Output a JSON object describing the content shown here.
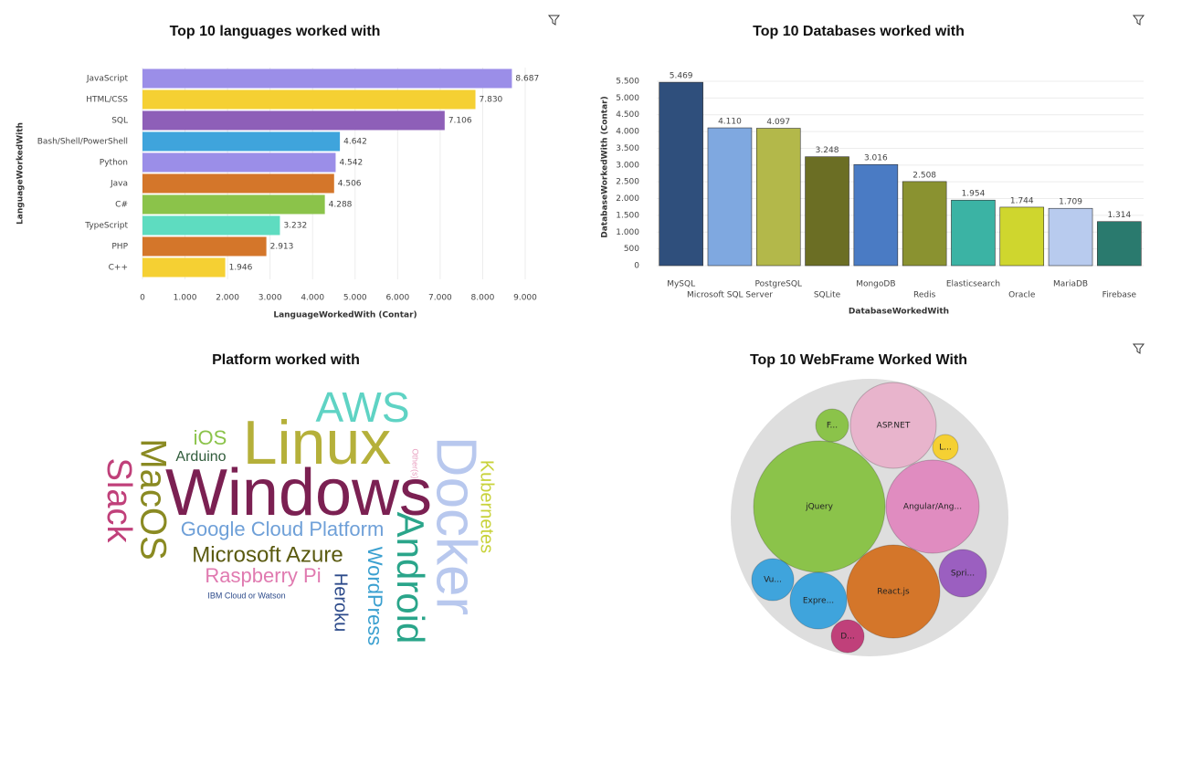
{
  "chart_data": [
    {
      "type": "hbar",
      "title": "Top 10 languages worked with",
      "x_label": "LanguageWorkedWith (Contar)",
      "y_label": "LanguageWorkedWith",
      "categories": [
        "JavaScript",
        "HTML/CSS",
        "SQL",
        "Bash/Shell/PowerShell",
        "Python",
        "Java",
        "C#",
        "TypeScript",
        "PHP",
        "C++"
      ],
      "values": [
        8687,
        7830,
        7106,
        4642,
        4542,
        4506,
        4288,
        3232,
        2913,
        1946
      ],
      "value_labels": [
        "8.687",
        "7.830",
        "7.106",
        "4.642",
        "4.542",
        "4.506",
        "4.288",
        "3.232",
        "2.913",
        "1.946"
      ],
      "colors": [
        "#9b8ee8",
        "#f5d033",
        "#8e5fb8",
        "#3fa4dc",
        "#9b8ee8",
        "#d4762a",
        "#8bc34a",
        "#5edcc0",
        "#d4762a",
        "#f5d033"
      ],
      "xlim": [
        0,
        9000
      ],
      "xticks": [
        0,
        {
          "value": 1000,
          "label": "1.000"
        },
        {
          "value": 2000,
          "label": "2.000"
        },
        {
          "value": 3000,
          "label": "3.000"
        },
        {
          "value": 4000,
          "label": "4.000"
        },
        {
          "value": 5000,
          "label": "5.000"
        },
        {
          "value": 6000,
          "label": "6.000"
        },
        {
          "value": 7000,
          "label": "7.000"
        },
        {
          "value": 8000,
          "label": "8.000"
        },
        {
          "value": 9000,
          "label": "9.000"
        }
      ],
      "grid": true
    },
    {
      "type": "bar",
      "title": "Top 10 Databases worked with",
      "x_label": "DatabaseWorkedWith",
      "y_label": "DatabaseWorkedWith (Contar)",
      "categories": [
        "MySQL",
        "Microsoft SQL Server",
        "PostgreSQL",
        "SQLite",
        "MongoDB",
        "Redis",
        "Elasticsearch",
        "Oracle",
        "MariaDB",
        "Firebase"
      ],
      "values": [
        5469,
        4110,
        4097,
        3248,
        3016,
        2508,
        1954,
        1744,
        1709,
        1314
      ],
      "value_labels": [
        "5.469",
        "4.110",
        "4.097",
        "3.248",
        "3.016",
        "2.508",
        "1.954",
        "1.744",
        "1.709",
        "1.314"
      ],
      "colors": [
        "#2f4f7c",
        "#7fa8e0",
        "#b3b84a",
        "#6b6e24",
        "#4a7bc4",
        "#8a9230",
        "#3bb3a4",
        "#cfd62e",
        "#b8cbee",
        "#2a7a6e"
      ],
      "ylim": [
        0,
        5500
      ],
      "yticks": [
        0,
        500,
        {
          "value": 1000,
          "label": "1.000"
        },
        {
          "value": 1500,
          "label": "1.500"
        },
        {
          "value": 2000,
          "label": "2.000"
        },
        {
          "value": 2500,
          "label": "2.500"
        },
        {
          "value": 3000,
          "label": "3.000"
        },
        {
          "value": 3500,
          "label": "3.500"
        },
        {
          "value": 4000,
          "label": "4.000"
        },
        {
          "value": 4500,
          "label": "4.500"
        },
        {
          "value": 5000,
          "label": "5.000"
        },
        {
          "value": 5500,
          "label": "5.500"
        }
      ],
      "grid": true
    },
    {
      "type": "wordcloud",
      "title": "Platform worked with",
      "categories": [
        "Windows",
        "Linux",
        "AWS",
        "iOS",
        "Arduino",
        "Slack",
        "MacOS",
        "Docker",
        "Kubernetes",
        "Other(s)",
        "Google Cloud Platform",
        "Android",
        "Microsoft Azure",
        "Raspberry Pi",
        "WordPress",
        "Heroku",
        "IBM Cloud or Watson"
      ],
      "values": [
        72,
        68,
        46,
        22,
        16,
        38,
        40,
        62,
        20,
        9,
        22,
        42,
        24,
        22,
        22,
        20,
        9
      ],
      "colors": [
        "#7b2052",
        "#b5b03a",
        "#5fd3c4",
        "#8bc34a",
        "#2f5b3a",
        "#c0407a",
        "#8a8a22",
        "#b8c8ee",
        "#c8d23a",
        "#e8a0c0",
        "#6fa0d8",
        "#2aa58a",
        "#5a5a10",
        "#e07ab0",
        "#3ba0d0",
        "#2c4a8a",
        "#2c4a8a"
      ]
    },
    {
      "type": "pack",
      "title": "Top 10 WebFrame Worked With",
      "categories": [
        "F...",
        "ASP.NET",
        "L...",
        "jQuery",
        "Angular/Ang...",
        "Vu...",
        "Expre...",
        "React.js",
        "Spri...",
        "D..."
      ],
      "values": [
        324,
        2209,
        196,
        5184,
        2601,
        529,
        961,
        2601,
        676,
        324
      ],
      "colors": [
        "#8bc34a",
        "#e8b4cc",
        "#f5d033",
        "#8bc34a",
        "#e08cc0",
        "#3fa4dc",
        "#3fa4dc",
        "#d4762a",
        "#9b5fc0",
        "#c0407a"
      ]
    }
  ]
}
